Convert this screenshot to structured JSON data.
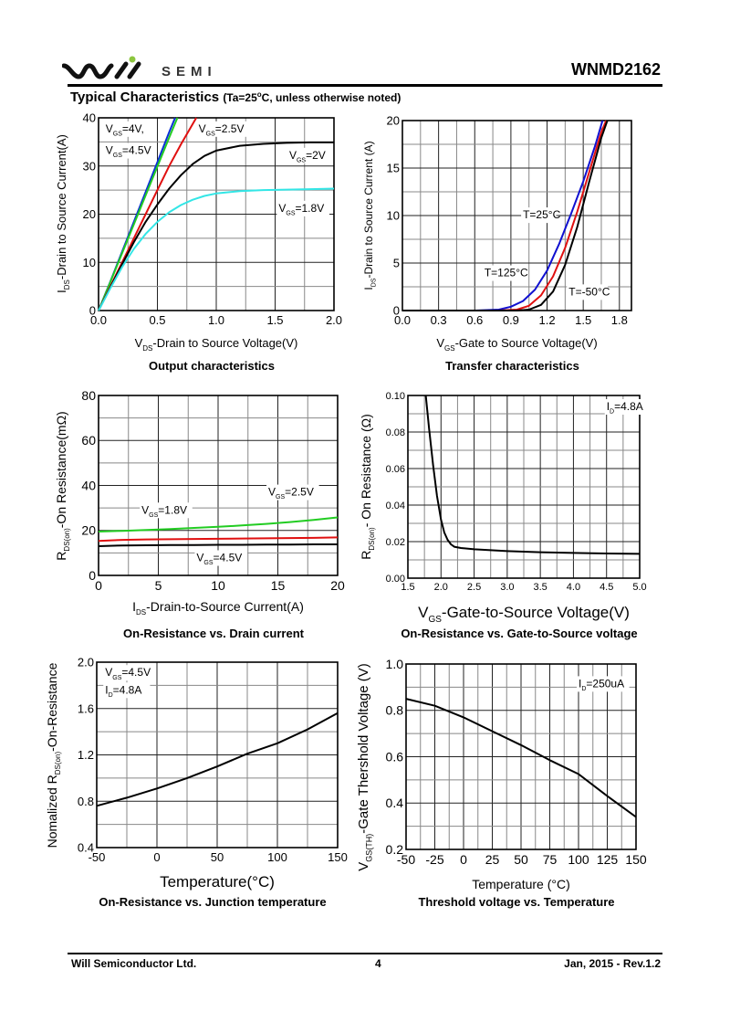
{
  "header": {
    "logo_text": "SEMI",
    "part_number": "WNMD2162",
    "section_title": "Typical Characteristics",
    "section_condition_prefix": "(Ta=25",
    "section_condition_suffix": "C, unless otherwise noted)",
    "degree": "o"
  },
  "footer": {
    "company": "Will Semiconductor Ltd.",
    "page": "4",
    "date_rev": "Jan, 2015 - Rev.1.2"
  },
  "chart_data": [
    {
      "id": "output",
      "type": "line",
      "title": "Output characteristics",
      "xlabel": "V_DS-Drain to Source Voltage(V)",
      "ylabel": "I_DS-Drain to Source Current(A)",
      "xlim": [
        0,
        2.0
      ],
      "ylim": [
        0,
        40
      ],
      "xticks": [
        0,
        0.5,
        1.0,
        1.5,
        2.0
      ],
      "xtick_labels": [
        "0.0",
        "0.5",
        "1.0",
        "1.5",
        "2.0"
      ],
      "yticks": [
        0,
        10,
        20,
        30,
        40
      ],
      "ytick_labels": [
        "0",
        "10",
        "20",
        "30",
        "40"
      ],
      "grid": true,
      "series": [
        {
          "name": "VGS=4.5V",
          "color": "#0a2fd6",
          "x": [
            0,
            0.1,
            0.2,
            0.3,
            0.4,
            0.5,
            0.6,
            0.65
          ],
          "y": [
            0,
            6,
            12.2,
            18.4,
            24.6,
            30.8,
            37,
            40
          ]
        },
        {
          "name": "VGS=4V",
          "color": "#22cc22",
          "x": [
            0,
            0.1,
            0.2,
            0.3,
            0.4,
            0.5,
            0.6,
            0.67
          ],
          "y": [
            0,
            5.9,
            11.9,
            17.9,
            23.9,
            29.9,
            35.9,
            40
          ]
        },
        {
          "name": "VGS=2.5V",
          "color": "#e01010",
          "x": [
            0,
            0.1,
            0.2,
            0.3,
            0.4,
            0.5,
            0.6,
            0.7,
            0.83
          ],
          "y": [
            0,
            5,
            10,
            15,
            20,
            25,
            30,
            34.5,
            40
          ]
        },
        {
          "name": "VGS=2V",
          "color": "#000000",
          "x": [
            0,
            0.1,
            0.2,
            0.3,
            0.4,
            0.5,
            0.6,
            0.7,
            0.8,
            0.9,
            1.0,
            1.2,
            1.4,
            1.6,
            1.8,
            2.0
          ],
          "y": [
            0,
            4.8,
            9.6,
            14.2,
            18.4,
            22,
            25.3,
            28.1,
            30.4,
            32.1,
            33.2,
            34.2,
            34.6,
            34.8,
            34.9,
            34.9
          ]
        },
        {
          "name": "VGS=1.8V",
          "color": "#33e6e6",
          "x": [
            0,
            0.1,
            0.2,
            0.3,
            0.4,
            0.5,
            0.6,
            0.7,
            0.8,
            0.9,
            1.0,
            1.2,
            1.4,
            1.6,
            1.8,
            2.0
          ],
          "y": [
            0,
            4.6,
            9,
            12.8,
            15.9,
            18.4,
            20.4,
            21.9,
            23,
            23.8,
            24.3,
            24.8,
            25,
            25.1,
            25.2,
            25.3
          ]
        }
      ],
      "annotations": [
        {
          "text": "V_GS=4V,",
          "x": 0.06,
          "y": 37
        },
        {
          "text": "V_GS=4.5V",
          "x": 0.06,
          "y": 32.5
        },
        {
          "text": "V_GS=2.5V",
          "x": 0.85,
          "y": 37
        },
        {
          "text": "V_GS=2V",
          "x": 1.62,
          "y": 31.5
        },
        {
          "text": "V_GS=1.8V",
          "x": 1.53,
          "y": 20.5
        }
      ]
    },
    {
      "id": "transfer",
      "type": "line",
      "title": "Transfer characteristics",
      "xlabel": "V_GS-Gate to Source Voltage(V)",
      "ylabel": "I_DS-Drain to Source Current (A)",
      "xlim": [
        0,
        1.9
      ],
      "ylim": [
        0,
        20
      ],
      "xticks": [
        0,
        0.3,
        0.6,
        0.9,
        1.2,
        1.5,
        1.8
      ],
      "xtick_labels": [
        "0.0",
        "0.3",
        "0.6",
        "0.9",
        "1.2",
        "1.5",
        "1.8"
      ],
      "yticks": [
        0,
        5,
        10,
        15,
        20
      ],
      "ytick_labels": [
        "0",
        "5",
        "10",
        "15",
        "20"
      ],
      "grid": true,
      "series": [
        {
          "name": "T=125°C",
          "color": "#1010d0",
          "x": [
            0,
            0.6,
            0.8,
            0.9,
            1.0,
            1.1,
            1.2,
            1.3,
            1.4,
            1.5,
            1.6,
            1.66
          ],
          "y": [
            0,
            0,
            0.1,
            0.4,
            1.0,
            2.2,
            4.2,
            7.0,
            10.2,
            13.6,
            17.4,
            20
          ]
        },
        {
          "name": "T=25°C",
          "color": "#e01010",
          "x": [
            0,
            0.8,
            0.95,
            1.05,
            1.15,
            1.25,
            1.35,
            1.45,
            1.55,
            1.65,
            1.69
          ],
          "y": [
            0,
            0,
            0.1,
            0.5,
            1.6,
            3.6,
            6.6,
            10.4,
            14.6,
            18.8,
            20
          ]
        },
        {
          "name": "T=-50°C",
          "color": "#000000",
          "x": [
            0,
            0.95,
            1.05,
            1.15,
            1.25,
            1.35,
            1.45,
            1.55,
            1.65,
            1.7
          ],
          "y": [
            0,
            0,
            0.1,
            0.6,
            2.0,
            4.8,
            8.8,
            13.6,
            18.2,
            20
          ]
        }
      ],
      "annotations": [
        {
          "text": "T=25°C",
          "x": 1.0,
          "y": 9.7
        },
        {
          "text": "T=125°C",
          "x": 0.68,
          "y": 3.6
        },
        {
          "text": "T=-50°C",
          "x": 1.38,
          "y": 1.6
        }
      ]
    },
    {
      "id": "rds_vs_id",
      "type": "line",
      "title": "On-Resistance vs. Drain current",
      "xlabel": "I_DS-Drain-to-Source Current(A)",
      "ylabel": "R_DS(on)-On Resistance(mΩ)",
      "xlim": [
        0,
        20
      ],
      "ylim": [
        0,
        80
      ],
      "xticks": [
        0,
        5,
        10,
        15,
        20
      ],
      "xtick_labels": [
        "0",
        "5",
        "10",
        "15",
        "20"
      ],
      "yticks": [
        0,
        20,
        40,
        60,
        80
      ],
      "ytick_labels": [
        "0",
        "20",
        "40",
        "60",
        "80"
      ],
      "grid": true,
      "series": [
        {
          "name": "VGS=1.8V",
          "color": "#22cc22",
          "x": [
            0,
            2,
            4,
            6,
            8,
            10,
            12,
            14,
            16,
            18,
            20
          ],
          "y": [
            19.5,
            19.8,
            20.2,
            20.6,
            21.1,
            21.6,
            22.2,
            22.9,
            23.7,
            24.7,
            25.8
          ]
        },
        {
          "name": "VGS=2.5V",
          "color": "#e01010",
          "x": [
            0,
            2,
            4,
            6,
            8,
            10,
            12,
            14,
            16,
            18,
            20
          ],
          "y": [
            15.3,
            15.8,
            16.0,
            16.1,
            16.2,
            16.3,
            16.4,
            16.5,
            16.6,
            16.7,
            16.9
          ]
        },
        {
          "name": "VGS=4.5V",
          "color": "#000000",
          "x": [
            0,
            2,
            4,
            6,
            8,
            10,
            12,
            14,
            16,
            18,
            20
          ],
          "y": [
            13.0,
            13.3,
            13.4,
            13.5,
            13.5,
            13.6,
            13.6,
            13.7,
            13.7,
            13.8,
            13.8
          ]
        }
      ],
      "annotations": [
        {
          "text": "V_GS=2.5V",
          "x": 14.2,
          "y": 35.5
        },
        {
          "text": "V_GS=1.8V",
          "x": 3.6,
          "y": 27.5
        },
        {
          "text": "V_GS=4.5V",
          "x": 8.2,
          "y": 6.3
        }
      ]
    },
    {
      "id": "rds_vs_vgs",
      "type": "line",
      "title": "On-Resistance vs. Gate-to-Source voltage",
      "xlabel": "V_GS-Gate-to-Source Voltage(V)",
      "ylabel": "R_DS(on)- On Resistance (Ω)",
      "xlim": [
        1.5,
        5.0
      ],
      "ylim": [
        0,
        0.1
      ],
      "xticks": [
        1.5,
        2.0,
        2.5,
        3.0,
        3.5,
        4.0,
        4.5,
        5.0
      ],
      "xtick_labels": [
        "1.5",
        "2.0",
        "2.5",
        "3.0",
        "3.5",
        "4.0",
        "4.5",
        "5.0"
      ],
      "yticks": [
        0,
        0.02,
        0.04,
        0.06,
        0.08,
        0.1
      ],
      "ytick_labels": [
        "0.00",
        "0.02",
        "0.04",
        "0.06",
        "0.08",
        "0.10"
      ],
      "grid": true,
      "series": [
        {
          "name": "ID=4.8A",
          "color": "#000000",
          "x": [
            1.77,
            1.82,
            1.88,
            1.94,
            2.0,
            2.05,
            2.1,
            2.15,
            2.2,
            2.3,
            2.5,
            3.0,
            3.5,
            4.0,
            4.5,
            5.0
          ],
          "y": [
            0.1,
            0.082,
            0.062,
            0.045,
            0.032,
            0.025,
            0.021,
            0.0185,
            0.0172,
            0.0165,
            0.0158,
            0.0148,
            0.0142,
            0.0138,
            0.0135,
            0.0133
          ]
        }
      ],
      "annotations": [
        {
          "text": "I_D=4.8A",
          "x": 4.5,
          "y": 0.092
        }
      ]
    },
    {
      "id": "rds_vs_temp",
      "type": "line",
      "title": "On-Resistance vs. Junction temperature",
      "xlabel": "Temperature(°C)",
      "ylabel": "Nomalized R_DS(on)-On-Resistance",
      "xlim": [
        -50,
        150
      ],
      "ylim": [
        0.4,
        2.0
      ],
      "xticks": [
        -50,
        0,
        50,
        100,
        150
      ],
      "xtick_labels": [
        "-50",
        "0",
        "50",
        "100",
        "150"
      ],
      "yticks": [
        0.4,
        0.8,
        1.2,
        1.6,
        2.0
      ],
      "ytick_labels": [
        "0.4",
        "0.8",
        "1.2",
        "1.6",
        "2.0"
      ],
      "grid": true,
      "series": [
        {
          "name": "VGS=4.5V, ID=4.8A",
          "color": "#000000",
          "x": [
            -50,
            -25,
            0,
            25,
            50,
            75,
            100,
            125,
            150
          ],
          "y": [
            0.76,
            0.83,
            0.91,
            1.0,
            1.1,
            1.21,
            1.3,
            1.42,
            1.56
          ]
        }
      ],
      "annotations": [
        {
          "text": "V_GS=4.5V",
          "x": -43,
          "y": 1.88
        },
        {
          "text": "I_D=4.8A",
          "x": -43,
          "y": 1.73
        }
      ]
    },
    {
      "id": "vth_vs_temp",
      "type": "line",
      "title": "Threshold voltage vs. Temperature",
      "xlabel": "Temperature (°C)",
      "ylabel": "V_GS(TH)-Gate Thershold Voltage (V)",
      "xlim": [
        -50,
        150
      ],
      "ylim": [
        0.2,
        1.0
      ],
      "xticks": [
        -50,
        -25,
        0,
        25,
        50,
        75,
        100,
        125,
        150
      ],
      "xtick_labels": [
        "-50",
        "-25",
        "0",
        "25",
        "50",
        "75",
        "100",
        "125",
        "150"
      ],
      "yticks": [
        0.2,
        0.4,
        0.6,
        0.8,
        1.0
      ],
      "ytick_labels": [
        "0.2",
        "0.4",
        "0.6",
        "0.8",
        "1.0"
      ],
      "grid": true,
      "series": [
        {
          "name": "ID=250uA",
          "color": "#000000",
          "x": [
            -50,
            -25,
            0,
            25,
            50,
            75,
            100,
            125,
            150
          ],
          "y": [
            0.85,
            0.82,
            0.77,
            0.71,
            0.65,
            0.585,
            0.525,
            0.43,
            0.34
          ]
        }
      ],
      "annotations": [
        {
          "text": "I_D=250uA",
          "x": 100,
          "y": 0.9
        }
      ]
    }
  ]
}
